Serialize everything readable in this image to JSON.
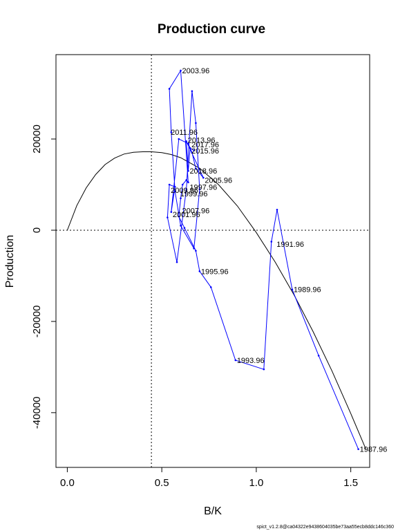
{
  "chart_data": {
    "type": "line",
    "title": "Production curve",
    "xlabel": "B/K",
    "ylabel": "Production",
    "xlim": [
      -0.06,
      1.6
    ],
    "ylim": [
      -52000,
      38500
    ],
    "x_ticks": [
      0.0,
      0.5,
      1.0,
      1.5
    ],
    "x_tick_labels": [
      "0.0",
      "0.5",
      "1.0",
      "1.5"
    ],
    "y_ticks": [
      -40000,
      -20000,
      0,
      20000
    ],
    "y_tick_labels": [
      "-40000",
      "-20000",
      "0",
      "20000"
    ],
    "reference_lines": {
      "vertical_x": 0.445,
      "horizontal_y": 0
    },
    "colors": {
      "observed": "#0000ff",
      "curve": "#000000",
      "reference": "#000000"
    },
    "series": [
      {
        "style": "solid-curve",
        "color": "#000000",
        "x": [
          0.0,
          0.05,
          0.1,
          0.15,
          0.2,
          0.25,
          0.3,
          0.35,
          0.4,
          0.445,
          0.5,
          0.55,
          0.6,
          0.7,
          0.8,
          0.9,
          1.0,
          1.1,
          1.2,
          1.3,
          1.4,
          1.5,
          1.58
        ],
        "y": [
          0,
          5400,
          9300,
          12200,
          14400,
          15800,
          16700,
          17100,
          17200,
          17200,
          17000,
          16600,
          15900,
          13600,
          10000,
          5300,
          -500,
          -7000,
          -14200,
          -22200,
          -30800,
          -40200,
          -48000
        ]
      },
      {
        "style": "line-points",
        "color": "#0000ff",
        "x": [
          1.54,
          1.33,
          1.19,
          1.11,
          1.08,
          1.04,
          0.89,
          0.76,
          0.7,
          0.68,
          0.62,
          0.59,
          0.6,
          0.61,
          0.63,
          0.64,
          0.6,
          0.54,
          0.55,
          0.57,
          0.6,
          0.67,
          0.7,
          0.68,
          0.66,
          0.63,
          0.58,
          0.53,
          0.54,
          0.57,
          0.55,
          0.59,
          0.64,
          0.66,
          0.68,
          0.72,
          0.63,
          0.64,
          0.65,
          0.67
        ],
        "y": [
          -48000,
          -27500,
          -13000,
          4500,
          -2500,
          -30500,
          -28500,
          -12500,
          -9000,
          -4500,
          500,
          3000,
          7000,
          10000,
          11000,
          10500,
          35000,
          31000,
          21500,
          8500,
          1000,
          -4000,
          9000,
          23500,
          30500,
          9000,
          -7000,
          2800,
          10000,
          9500,
          4000,
          20000,
          19000,
          17000,
          13500,
          11500,
          19500,
          13000,
          18000,
          17500
        ],
        "labels": [
          "1987.96",
          "1989.96",
          "1991.96",
          "1993.96",
          "1995.96",
          "1997.96",
          "1999.96",
          "2001.96",
          "2003.96",
          "2005.96",
          "2007.96",
          "2009.96",
          "2011.96",
          "2013.96",
          "2015.96",
          "2017.96",
          "2018.96"
        ],
        "label_points": [
          {
            "text": "1987.96",
            "x": 1.54,
            "y": -48000
          },
          {
            "text": "1989.96",
            "x": 1.19,
            "y": -13000
          },
          {
            "text": "1991.96",
            "x": 1.1,
            "y": -3000
          },
          {
            "text": "1993.96",
            "x": 0.89,
            "y": -28500
          },
          {
            "text": "1995.96",
            "x": 0.7,
            "y": -9000
          },
          {
            "text": "1997.96",
            "x": 0.64,
            "y": 9500
          },
          {
            "text": "1999.96",
            "x": 0.59,
            "y": 8000
          },
          {
            "text": "2001.96",
            "x": 0.55,
            "y": 3500
          },
          {
            "text": "2003.96",
            "x": 0.6,
            "y": 35000
          },
          {
            "text": "2005.96",
            "x": 0.72,
            "y": 11000
          },
          {
            "text": "2007.96",
            "x": 0.6,
            "y": 4300
          },
          {
            "text": "2009.96",
            "x": 0.54,
            "y": 8800
          },
          {
            "text": "2011.96",
            "x": 0.54,
            "y": 21500
          },
          {
            "text": "2013.96",
            "x": 0.63,
            "y": 19800
          },
          {
            "text": "2015.96",
            "x": 0.65,
            "y": 17400
          },
          {
            "text": "2017.96",
            "x": 0.65,
            "y": 18800
          },
          {
            "text": "2018.96",
            "x": 0.64,
            "y": 13000
          }
        ]
      }
    ]
  },
  "footer_text": "spict_v1.2.8@ca04322e9438604035be73aa55ecb8ddc146c360"
}
